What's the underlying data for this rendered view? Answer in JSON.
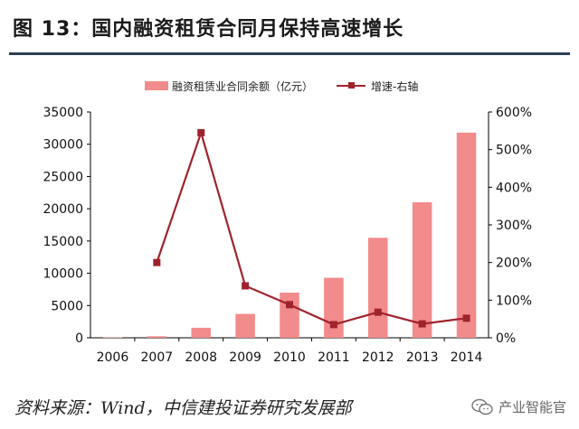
{
  "figure_title": "图 13：国内融资租赁合同月保持高速增长",
  "source_note": "资料来源：Wind，中信建投证券研究发展部",
  "watermark": {
    "text": "产业智能官",
    "icon": "wechat-icon"
  },
  "colors": {
    "bar": "#f28b8b",
    "line": "#a0232c",
    "rule": "#2b3f56",
    "axis": "#000000"
  },
  "chart_data": {
    "type": "bar+line",
    "categories": [
      "2006",
      "2007",
      "2008",
      "2009",
      "2010",
      "2011",
      "2012",
      "2013",
      "2014"
    ],
    "series": [
      {
        "name": "融资租赁业合同余额（亿元）",
        "type": "bar",
        "axis": "left",
        "values": [
          80,
          240,
          1550,
          3700,
          7000,
          9300,
          15500,
          21000,
          31800
        ]
      },
      {
        "name": "增速-右轴",
        "type": "line",
        "axis": "right",
        "values": [
          null,
          200,
          545,
          138,
          88,
          35,
          68,
          37,
          52
        ]
      }
    ],
    "y_left": {
      "min": 0,
      "max": 35000,
      "ticks": [
        "0",
        "5000",
        "10000",
        "15000",
        "20000",
        "25000",
        "30000",
        "35000"
      ]
    },
    "y_right": {
      "min": 0,
      "max": 600,
      "ticks": [
        "0%",
        "100%",
        "200%",
        "300%",
        "400%",
        "500%",
        "600%"
      ]
    },
    "grid": false,
    "legend_position": "top"
  }
}
